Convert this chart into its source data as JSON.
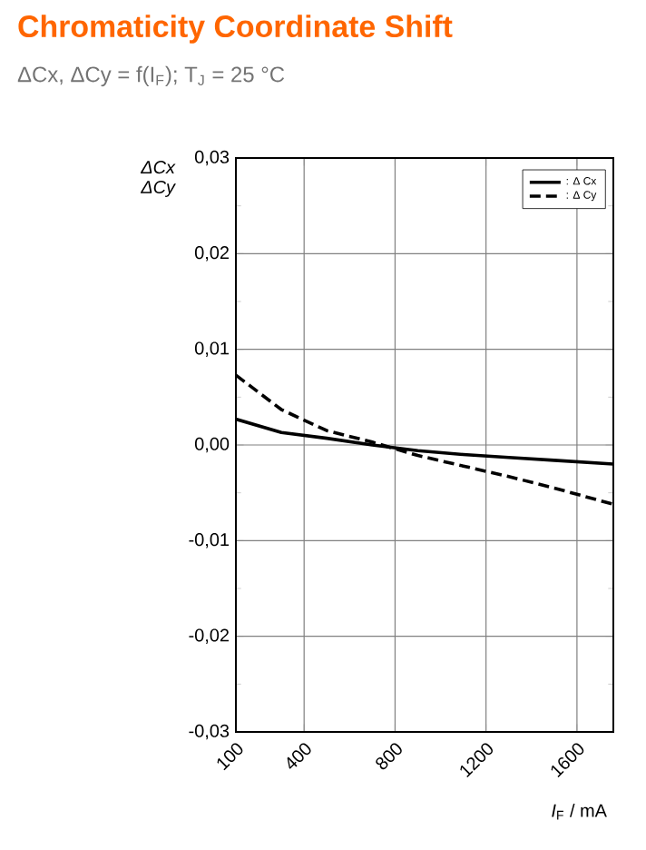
{
  "chart_data": {
    "type": "line",
    "title": "Chromaticity Coordinate Shift",
    "subtitle": "ΔCx, ΔCy = f(I$_{F}$); T$_{J}$ = 25 °C",
    "xlabel": "*I*$_{F}$ / mA",
    "ylabel": "ΔCx ΔCy",
    "x": [
      100,
      300,
      500,
      700,
      900,
      1100,
      1300,
      1500,
      1760
    ],
    "series": [
      {
        "name": ": Δ Cx",
        "color": "#000000",
        "line_style": "solid",
        "values": [
          0.0027,
          0.0013,
          0.0007,
          0.0,
          -0.0006,
          -0.001,
          -0.0013,
          -0.0016,
          -0.002
        ]
      },
      {
        "name": ": Δ Cy",
        "color": "#000000",
        "line_style": "dashed",
        "values": [
          0.0073,
          0.0037,
          0.0015,
          0.0003,
          -0.0011,
          -0.0022,
          -0.0033,
          -0.0045,
          -0.0062
        ]
      }
    ],
    "xlim": [
      100,
      1760
    ],
    "xticks": [
      100,
      400,
      800,
      1200,
      1600
    ],
    "ylim": [
      -0.03,
      0.03
    ],
    "yticks": [
      {
        "value": -0.03,
        "label": "-0,03"
      },
      {
        "value": -0.02,
        "label": "-0,02"
      },
      {
        "value": -0.01,
        "label": "-0,01"
      },
      {
        "value": 0,
        "label": "0,00"
      },
      {
        "value": 0.01,
        "label": "0,01"
      },
      {
        "value": 0.02,
        "label": "0,02"
      },
      {
        "value": 0.03,
        "label": "0,03"
      }
    ],
    "grid": true,
    "legend": "top right",
    "marker": "none"
  }
}
